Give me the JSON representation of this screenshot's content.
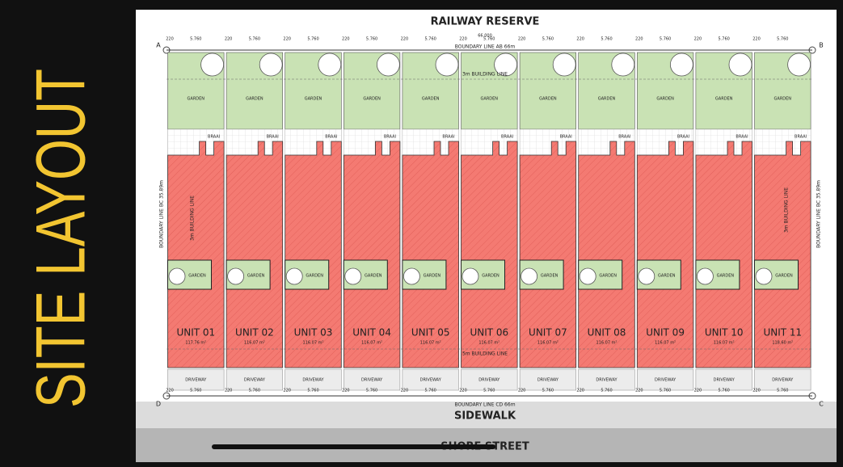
{
  "side_title": "SITE LAYOUT",
  "top_label": "RAILWAY RESERVE",
  "boundary_top": "BOUNDARY LINE AB 66m",
  "boundary_bottom": "BOUNDARY LINE CD 66m",
  "boundary_side": "BOUNDARY LINE BC 35.89m",
  "building_line_top": "3m BUILDING LINE",
  "building_line_side": "3m BUILDING LINE",
  "building_line_bottom": "5m BUILDING LINE",
  "corners": [
    "A",
    "B",
    "C",
    "D"
  ],
  "dimensions": {
    "overall": "66.000",
    "unit_width": "5.760",
    "gap": "220"
  },
  "sidewalk": "SIDEWALK",
  "street": "SHORE STREET",
  "units": [
    {
      "garden": "GARDEN",
      "braai": "BRAAI",
      "small_garden": "GARDEN",
      "name": "UNIT 01",
      "area": "117.76 m²",
      "driveway": "DRIVEWAY"
    },
    {
      "garden": "GARDEN",
      "braai": "BRAAI",
      "small_garden": "GARDEN",
      "name": "UNIT 02",
      "area": "116.07 m²",
      "driveway": "DRIVEWAY"
    },
    {
      "garden": "GARDEN",
      "braai": "BRAAI",
      "small_garden": "GARDEN",
      "name": "UNIT 03",
      "area": "116.07 m²",
      "driveway": "DRIVEWAY"
    },
    {
      "garden": "GARDEN",
      "braai": "BRAAI",
      "small_garden": "GARDEN",
      "name": "UNIT 04",
      "area": "116.07 m²",
      "driveway": "DRIVEWAY"
    },
    {
      "garden": "GARDEN",
      "braai": "BRAAI",
      "small_garden": "GARDEN",
      "name": "UNIT 05",
      "area": "116.07 m²",
      "driveway": "DRIVEWAY"
    },
    {
      "garden": "GARDEN",
      "braai": "BRAAI",
      "small_garden": "GARDEN",
      "name": "UNIT 06",
      "area": "116.07 m²",
      "driveway": "DRIVEWAY"
    },
    {
      "garden": "GARDEN",
      "braai": "BRAAI",
      "small_garden": "GARDEN",
      "name": "UNIT 07",
      "area": "116.07 m²",
      "driveway": "DRIVEWAY"
    },
    {
      "garden": "GARDEN",
      "braai": "BRAAI",
      "small_garden": "GARDEN",
      "name": "UNIT 08",
      "area": "116.07 m²",
      "driveway": "DRIVEWAY"
    },
    {
      "garden": "GARDEN",
      "braai": "BRAAI",
      "small_garden": "GARDEN",
      "name": "UNIT 09",
      "area": "116.07 m²",
      "driveway": "DRIVEWAY"
    },
    {
      "garden": "GARDEN",
      "braai": "BRAAI",
      "small_garden": "GARDEN",
      "name": "UNIT 10",
      "area": "116.07 m²",
      "driveway": "DRIVEWAY"
    },
    {
      "garden": "GARDEN",
      "braai": "BRAAI",
      "small_garden": "GARDEN",
      "name": "UNIT 11",
      "area": "118.60 m²",
      "driveway": "DRIVEWAY"
    }
  ]
}
